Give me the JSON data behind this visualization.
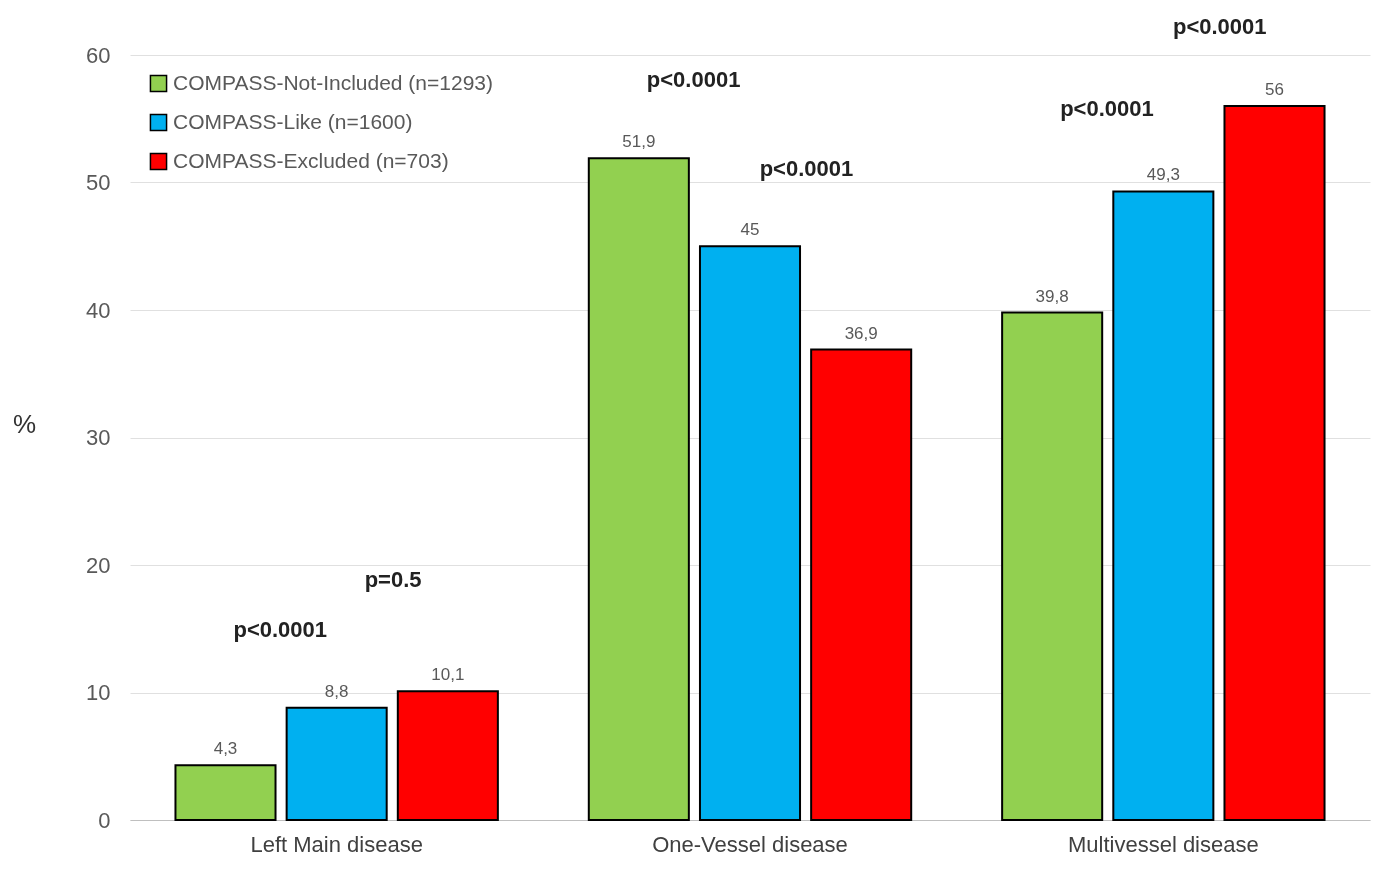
{
  "chart_data": {
    "type": "bar",
    "ylabel": "%",
    "categories": [
      "Left Main disease",
      "One-Vessel disease",
      "Multivessel disease"
    ],
    "series": [
      {
        "name": "COMPASS-Not-Included (n=1293)",
        "color": "#92d050",
        "values": [
          4.3,
          51.9,
          39.8
        ],
        "value_labels": [
          "4,3",
          "51,9",
          "39,8"
        ]
      },
      {
        "name": "COMPASS-Like (n=1600)",
        "color": "#00b0f0",
        "values": [
          8.8,
          45,
          49.3
        ],
        "value_labels": [
          "8,8",
          "45",
          "49,3"
        ]
      },
      {
        "name": "COMPASS-Excluded (n=703)",
        "color": "#ff0000",
        "values": [
          10.1,
          36.9,
          56
        ],
        "value_labels": [
          "10,1",
          "36,9",
          "56"
        ]
      }
    ],
    "ylim": [
      0,
      60
    ],
    "yticks": [
      0,
      10,
      20,
      30,
      40,
      50,
      60
    ],
    "grid": "y",
    "legend": "top left",
    "annotations": [
      "p<0.0001",
      "p=0.5",
      "p<0.0001",
      "p<0.0001",
      "p<0.0001",
      "p<0.0001"
    ]
  }
}
